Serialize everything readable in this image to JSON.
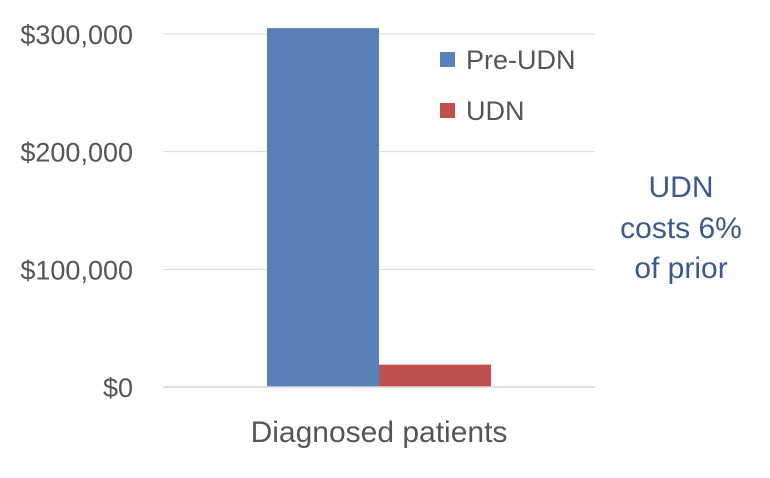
{
  "chart_data": {
    "type": "bar",
    "categories": [
      "Diagnosed patients"
    ],
    "series": [
      {
        "name": "Pre-UDN",
        "values": [
          305000
        ],
        "color": "#5a80b8"
      },
      {
        "name": "UDN",
        "values": [
          19000
        ],
        "color": "#c0504d"
      }
    ],
    "ylim": [
      0,
      300000
    ],
    "yticks": [
      0,
      100000,
      200000,
      300000
    ],
    "ytick_labels": [
      "$0",
      "$100,000",
      "$200,000",
      "$300,000"
    ],
    "grid": true,
    "legend_placement": "top-right",
    "annotation": [
      "UDN",
      "costs 6%",
      "of prior"
    ],
    "title": "",
    "xlabel": "",
    "ylabel": ""
  }
}
